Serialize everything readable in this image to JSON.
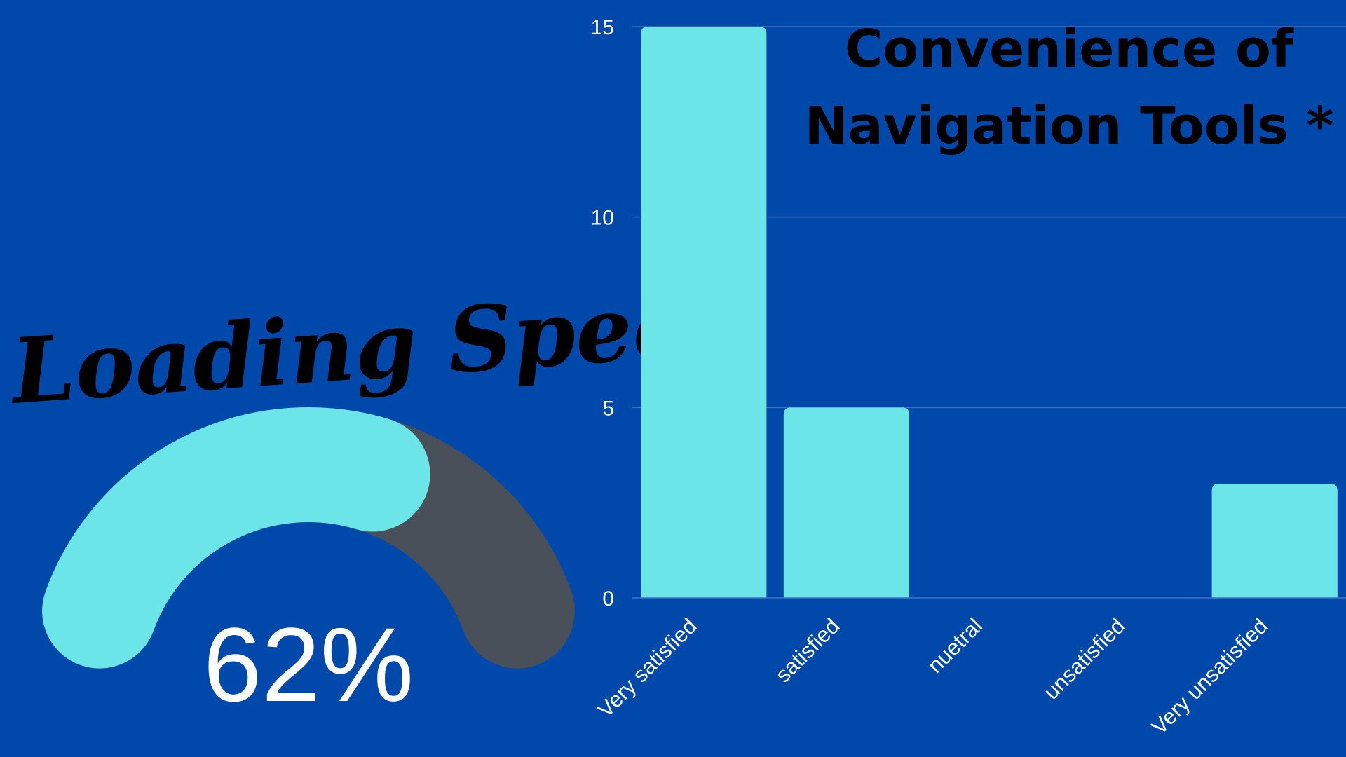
{
  "gauge": {
    "title": "Loading Speed",
    "value_label": "62%",
    "value_fraction": 0.62,
    "fill_color": "#6CE5E8",
    "track_color": "#4A5059"
  },
  "chart_data": {
    "type": "bar",
    "title_lines": [
      "Convenience of",
      "Navigation Tools *"
    ],
    "categories": [
      "Very satisfied",
      "satisfied",
      "nuetral",
      "unsatisfied",
      "Very unsatisfied"
    ],
    "values": [
      15,
      5,
      0,
      0,
      3
    ],
    "yticks": [
      "0",
      "5",
      "10",
      "15"
    ],
    "ylim": [
      0,
      15
    ],
    "grid": true,
    "bar_color": "#6CE5E8",
    "background": "#0049AB"
  }
}
